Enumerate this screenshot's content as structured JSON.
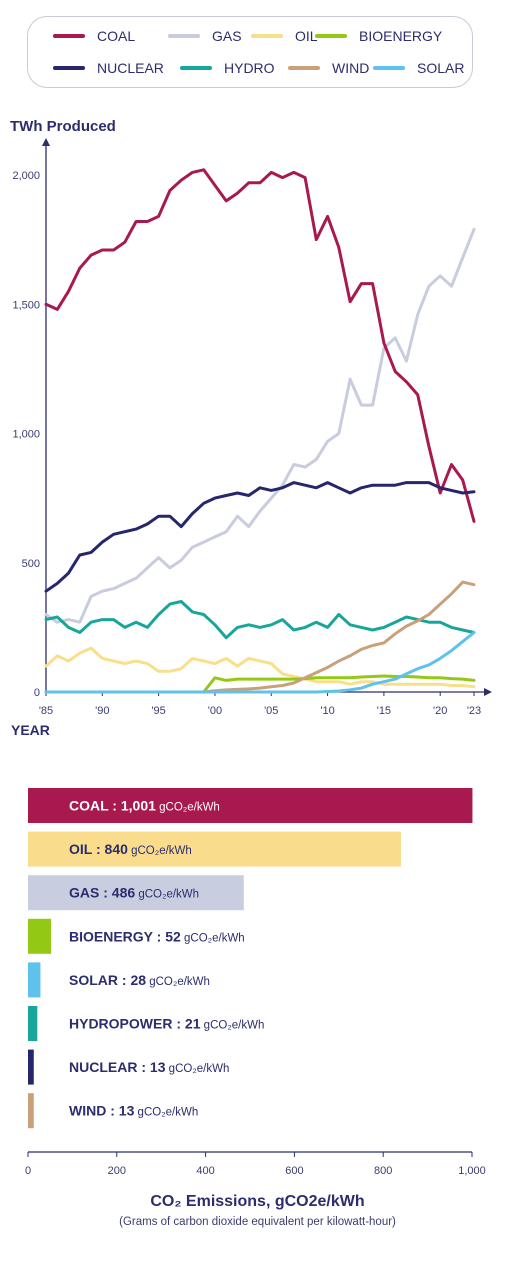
{
  "legend": [
    {
      "label": "COAL",
      "color": "#a8194f"
    },
    {
      "label": "GAS",
      "color": "#c9ccdf"
    },
    {
      "label": "OIL",
      "color": "#f9df8a"
    },
    {
      "label": "BIOENERGY",
      "color": "#93c914"
    },
    {
      "label": "NUCLEAR",
      "color": "#25266b"
    },
    {
      "label": "HYDRO",
      "color": "#19a69a"
    },
    {
      "label": "WIND",
      "color": "#c9a07a"
    },
    {
      "label": "SOLAR",
      "color": "#5ec2ec"
    }
  ],
  "chart_data": [
    {
      "type": "line",
      "ylabel": "TWh Produced",
      "xlabel": "YEAR",
      "xlim": [
        1985,
        2023
      ],
      "ylim": [
        0,
        2000
      ],
      "yticks": [
        0,
        500,
        1000,
        1500,
        2000
      ],
      "ytick_labels": [
        "0",
        "500",
        "1,000",
        "1,500",
        "2,000"
      ],
      "xticks": [
        1985,
        1990,
        1995,
        2000,
        2005,
        2010,
        2015,
        2020,
        2023
      ],
      "xtick_labels": [
        "'85",
        "'90",
        "'95",
        "'00",
        "'05",
        "'10",
        "'15",
        "'20",
        "'23"
      ],
      "x": [
        1985,
        1986,
        1987,
        1988,
        1989,
        1990,
        1991,
        1992,
        1993,
        1994,
        1995,
        1996,
        1997,
        1998,
        1999,
        2000,
        2001,
        2002,
        2003,
        2004,
        2005,
        2006,
        2007,
        2008,
        2009,
        2010,
        2011,
        2012,
        2013,
        2014,
        2015,
        2016,
        2017,
        2018,
        2019,
        2020,
        2021,
        2022,
        2023
      ],
      "series": [
        {
          "name": "GAS",
          "values": [
            300,
            270,
            280,
            270,
            370,
            390,
            400,
            420,
            440,
            480,
            520,
            480,
            510,
            560,
            580,
            600,
            620,
            680,
            640,
            700,
            750,
            800,
            880,
            870,
            900,
            970,
            1000,
            1210,
            1110,
            1110,
            1330,
            1370,
            1280,
            1460,
            1570,
            1610,
            1570,
            1680,
            1790
          ]
        },
        {
          "name": "OIL",
          "values": [
            100,
            140,
            120,
            150,
            170,
            130,
            120,
            110,
            120,
            110,
            80,
            80,
            90,
            130,
            120,
            110,
            130,
            100,
            130,
            120,
            110,
            70,
            60,
            50,
            40,
            40,
            40,
            30,
            40,
            40,
            30,
            30,
            30,
            30,
            30,
            30,
            25,
            25,
            20
          ]
        },
        {
          "name": "HYDRO",
          "values": [
            280,
            290,
            250,
            230,
            270,
            280,
            280,
            250,
            270,
            250,
            300,
            340,
            350,
            310,
            300,
            260,
            210,
            250,
            260,
            250,
            260,
            280,
            240,
            250,
            270,
            250,
            300,
            260,
            250,
            240,
            250,
            270,
            290,
            280,
            270,
            270,
            250,
            240,
            230
          ]
        },
        {
          "name": "BIOENERGY",
          "values": [
            0,
            0,
            0,
            0,
            0,
            0,
            0,
            0,
            0,
            0,
            0,
            0,
            0,
            0,
            0,
            55,
            45,
            50,
            50,
            50,
            50,
            50,
            50,
            52,
            55,
            55,
            55,
            55,
            58,
            60,
            62,
            60,
            60,
            58,
            55,
            55,
            52,
            50,
            45
          ]
        },
        {
          "name": "WIND",
          "values": [
            0,
            0,
            0,
            0,
            0,
            0,
            0,
            0,
            0,
            0,
            0,
            0,
            0,
            0,
            0,
            5,
            8,
            10,
            12,
            15,
            20,
            25,
            35,
            55,
            75,
            95,
            120,
            140,
            165,
            180,
            190,
            225,
            255,
            275,
            300,
            340,
            380,
            425,
            415
          ]
        },
        {
          "name": "SOLAR",
          "values": [
            0,
            0,
            0,
            0,
            0,
            0,
            0,
            0,
            0,
            0,
            0,
            0,
            0,
            0,
            0,
            0,
            0,
            0,
            0,
            0,
            0,
            0,
            0,
            0,
            0,
            2,
            4,
            8,
            15,
            30,
            40,
            50,
            70,
            90,
            105,
            130,
            160,
            195,
            230
          ]
        },
        {
          "name": "COAL",
          "values": [
            1500,
            1480,
            1550,
            1640,
            1690,
            1710,
            1710,
            1740,
            1820,
            1820,
            1840,
            1940,
            1980,
            2010,
            2020,
            1960,
            1900,
            1930,
            1970,
            1970,
            2010,
            1990,
            2010,
            1990,
            1750,
            1840,
            1720,
            1510,
            1580,
            1580,
            1350,
            1240,
            1200,
            1150,
            950,
            770,
            880,
            820,
            660
          ]
        },
        {
          "name": "NUCLEAR",
          "values": [
            390,
            420,
            460,
            530,
            540,
            580,
            610,
            620,
            630,
            650,
            680,
            680,
            640,
            690,
            730,
            750,
            760,
            770,
            760,
            790,
            780,
            790,
            810,
            800,
            790,
            810,
            790,
            770,
            790,
            800,
            800,
            800,
            810,
            810,
            810,
            790,
            780,
            770,
            775
          ]
        }
      ]
    },
    {
      "type": "bar",
      "orientation": "horizontal",
      "xlabel": "CO₂ Emissions, gCO2e/kWh",
      "xlabel_sub": "(Grams of carbon dioxide equivalent per kilowatt-hour)",
      "xlim": [
        0,
        1000
      ],
      "xticks": [
        0,
        200,
        400,
        600,
        800,
        1000
      ],
      "xtick_labels": [
        "0",
        "200",
        "400",
        "600",
        "800",
        "1,000"
      ],
      "unit": "gCO₂e/kWh",
      "bars": [
        {
          "label": "COAL",
          "value": 1001,
          "value_text": "1,001",
          "color": "#a8194f"
        },
        {
          "label": "OIL",
          "value": 840,
          "value_text": "840",
          "color": "#fadd8c"
        },
        {
          "label": "GAS",
          "value": 486,
          "value_text": "486",
          "color": "#c9cde0"
        },
        {
          "label": "BIOENERGY",
          "value": 52,
          "value_text": "52",
          "color": "#93c914"
        },
        {
          "label": "SOLAR",
          "value": 28,
          "value_text": "28",
          "color": "#5ec2ec"
        },
        {
          "label": "HYDROPOWER",
          "value": 21,
          "value_text": "21",
          "color": "#19a69a"
        },
        {
          "label": "NUCLEAR",
          "value": 13,
          "value_text": "13",
          "color": "#25266b"
        },
        {
          "label": "WIND",
          "value": 13,
          "value_text": "13",
          "color": "#c9a07a"
        }
      ]
    }
  ]
}
